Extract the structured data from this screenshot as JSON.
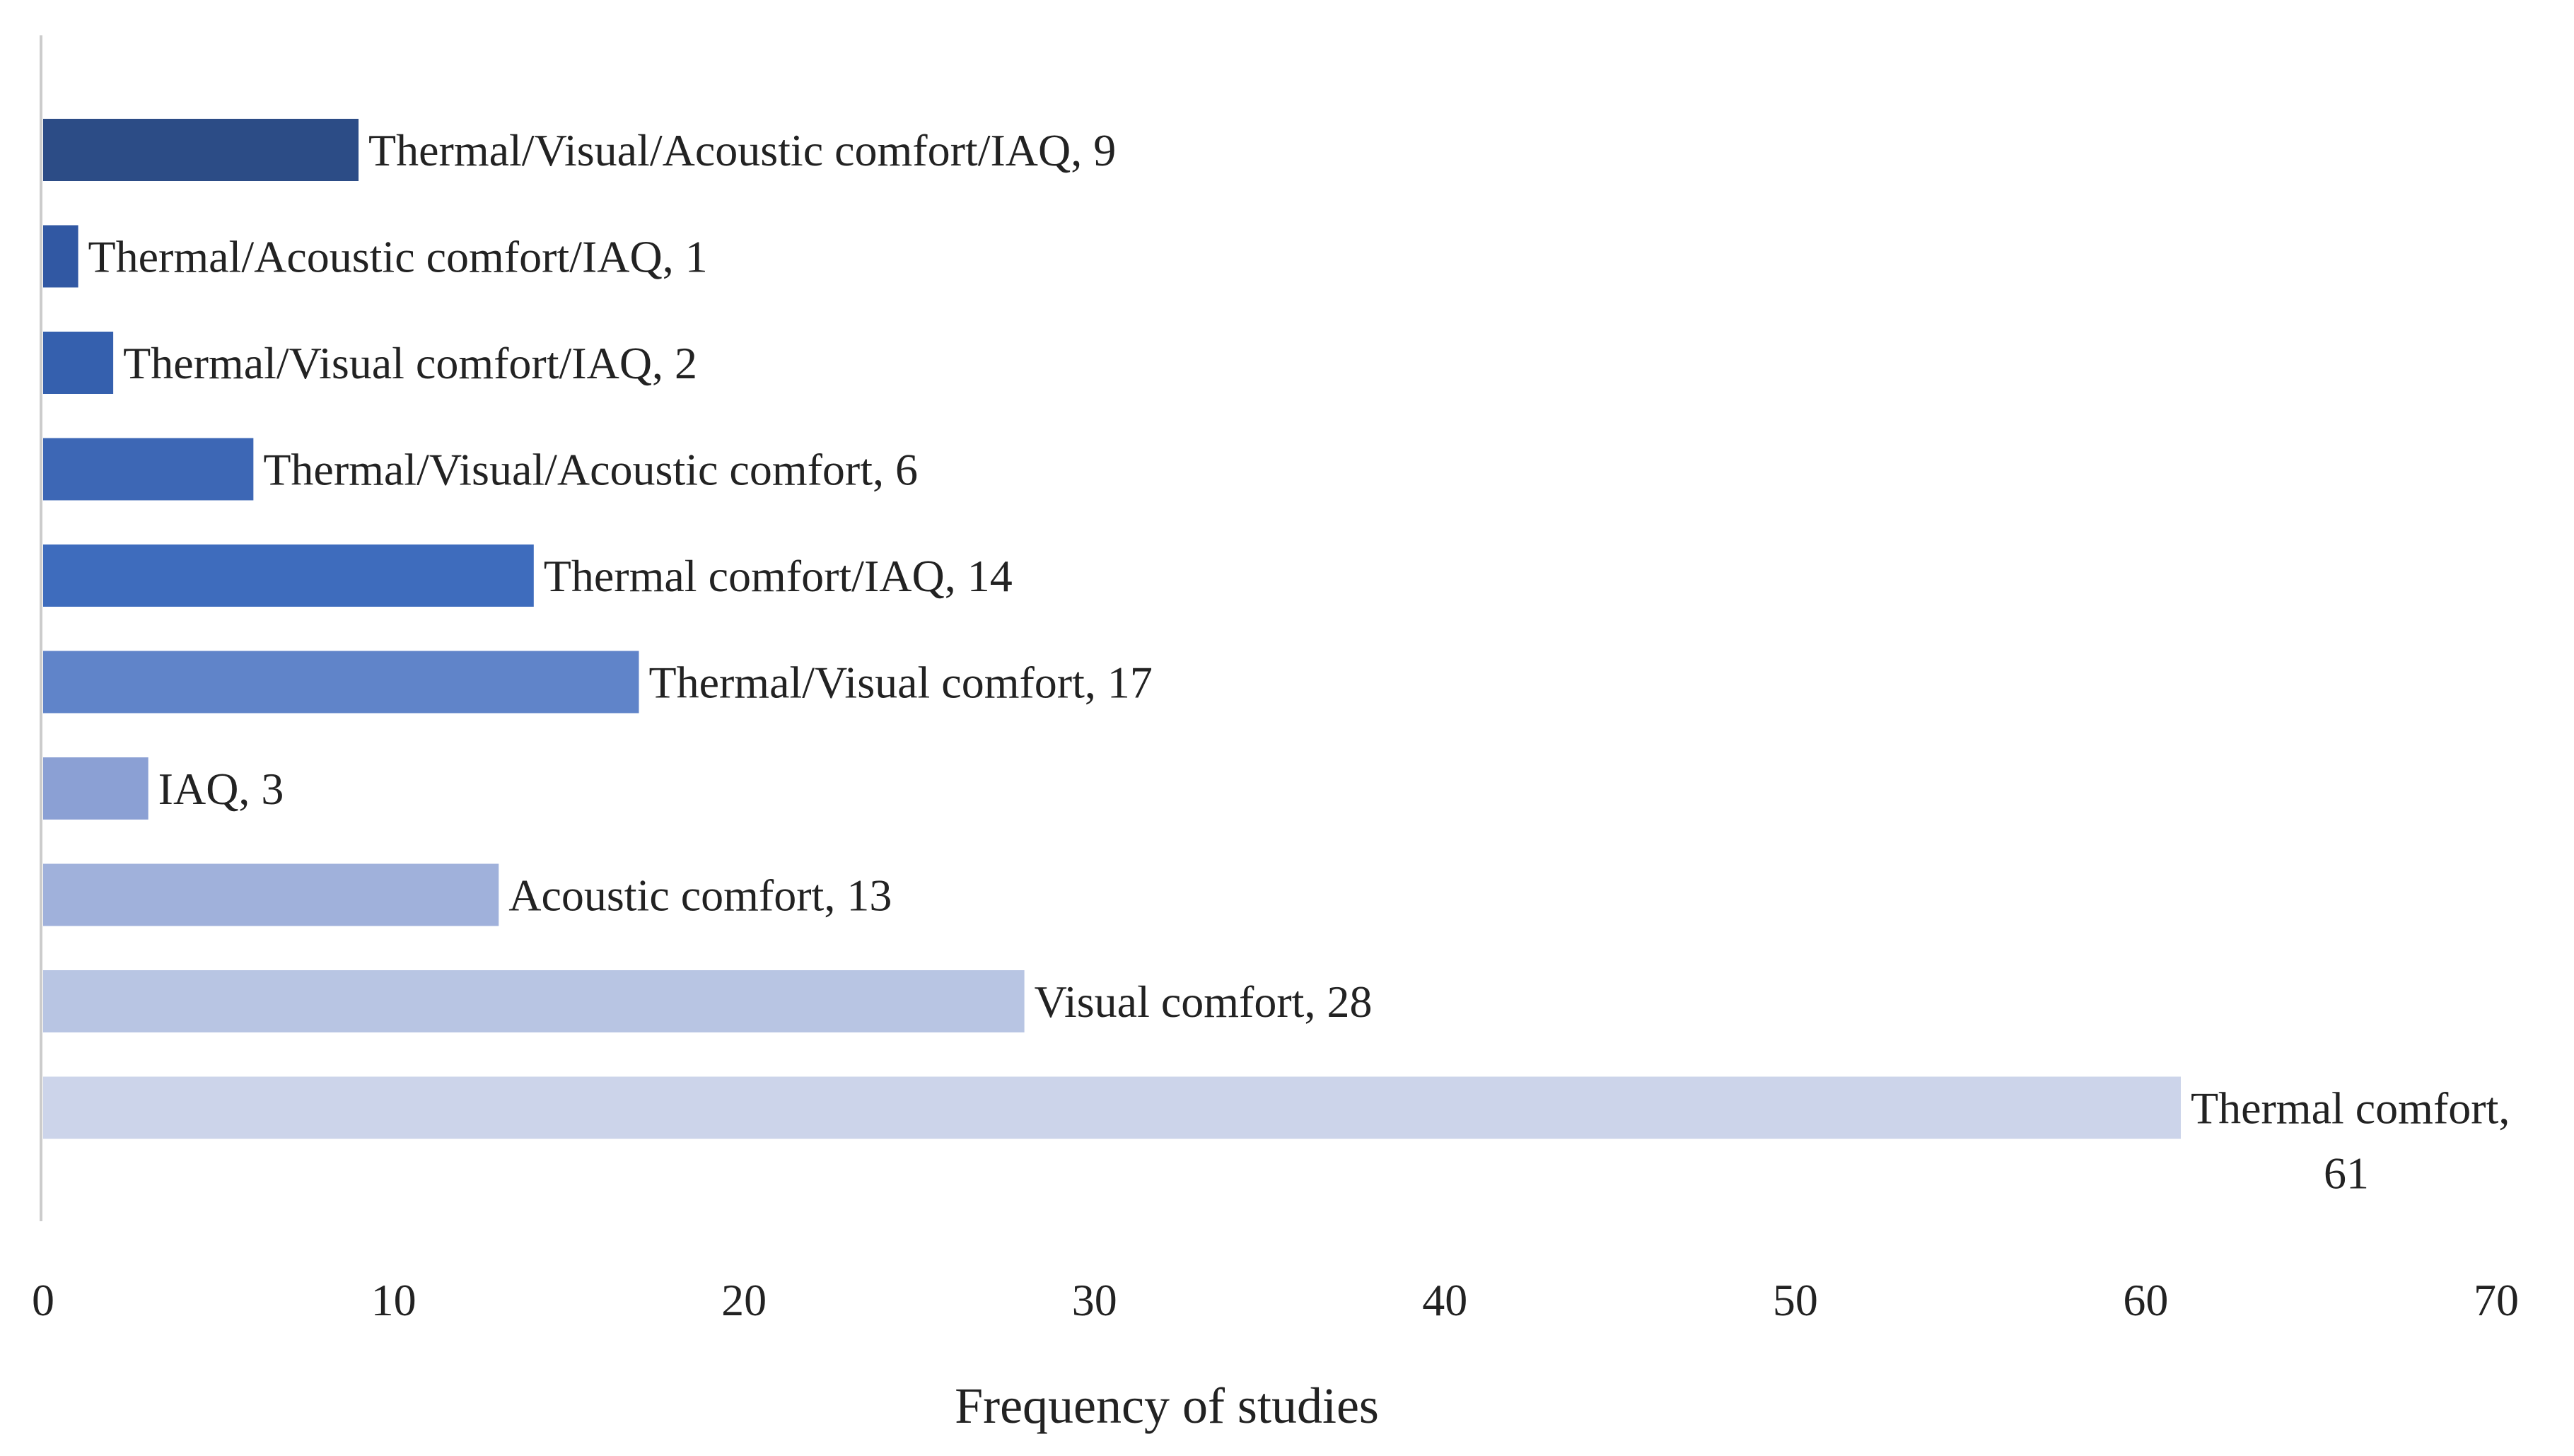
{
  "chart_data": {
    "type": "bar",
    "orientation": "horizontal",
    "title": "",
    "xlabel": "Frequency of studies",
    "ylabel": "",
    "xlim": [
      0,
      70
    ],
    "x_ticks": [
      0,
      10,
      20,
      30,
      40,
      50,
      60,
      70
    ],
    "grid": false,
    "legend": "none",
    "categories": [
      "Thermal/Visual/Acoustic comfort/IAQ",
      "Thermal/Acoustic comfort/IAQ",
      "Thermal/Visual comfort/IAQ",
      "Thermal/Visual/Acoustic comfort",
      "Thermal comfort/IAQ",
      "Thermal/Visual comfort",
      "IAQ",
      "Acoustic comfort",
      "Visual comfort",
      "Thermal comfort"
    ],
    "values": [
      9,
      1,
      2,
      6,
      14,
      17,
      3,
      13,
      28,
      61
    ],
    "data_labels": [
      "Thermal/Visual/Acoustic comfort/IAQ, 9",
      "Thermal/Acoustic comfort/IAQ, 1",
      "Thermal/Visual comfort/IAQ, 2",
      "Thermal/Visual/Acoustic comfort, 6",
      "Thermal comfort/IAQ, 14",
      "Thermal/Visual comfort, 17",
      "IAQ, 3",
      "Acoustic comfort, 13",
      "Visual comfort, 28",
      "Thermal comfort, 61"
    ],
    "colors": [
      "#2c4c86",
      "#3158a3",
      "#3560ae",
      "#3d67b5",
      "#3e6cbd",
      "#6084c9",
      "#8ba0d4",
      "#a0b1db",
      "#b8c5e3",
      "#ccd4ea"
    ],
    "axis_color": "#cccccc",
    "text_color": "#222222"
  }
}
